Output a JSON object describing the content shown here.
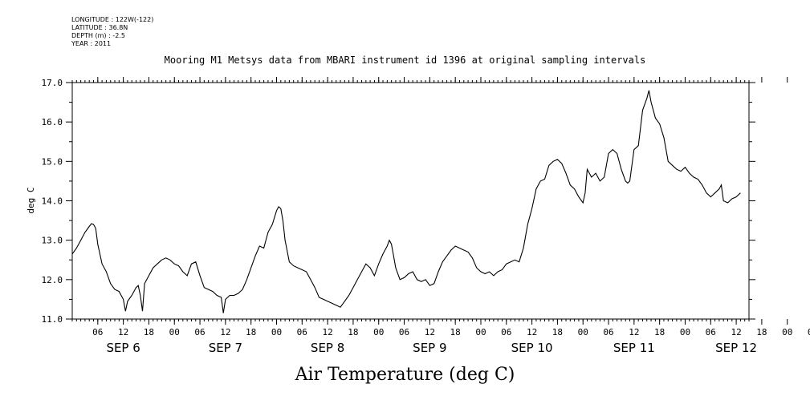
{
  "meta_lines": [
    "LONGITUDE : 122W(-122)",
    "LATITUDE : 36.8N",
    "DEPTH (m) : -2.5",
    "YEAR : 2011"
  ],
  "chart_data": {
    "type": "line",
    "title": "Mooring M1 Metsys data from MBARI instrument id 1396 at original sampling intervals",
    "xlabel": "Air Temperature (deg C)",
    "ylabel": "deg C",
    "ylim": [
      11.0,
      17.0
    ],
    "yticks": [
      "11.0",
      "12.0",
      "13.0",
      "14.0",
      "15.0",
      "16.0",
      "17.0"
    ],
    "xlim_hours": [
      0,
      159
    ],
    "hour_tick_labels": [
      "06",
      "12",
      "18",
      "00",
      "06",
      "12",
      "18",
      "00",
      "06",
      "12",
      "18",
      "00",
      "06",
      "12",
      "18",
      "00",
      "06",
      "12",
      "18",
      "00",
      "06",
      "12",
      "18",
      "00",
      "06",
      "12",
      "18",
      "00",
      "06",
      "12"
    ],
    "day_labels": [
      "SEP  6",
      "SEP  7",
      "SEP  8",
      "SEP  9",
      "SEP 10",
      "SEP 11",
      "SEP 12"
    ],
    "series": [
      {
        "name": "",
        "points": [
          [
            0,
            12.65
          ],
          [
            1,
            12.8
          ],
          [
            2,
            13.0
          ],
          [
            3,
            13.2
          ],
          [
            4,
            13.35
          ],
          [
            4.5,
            13.42
          ],
          [
            5,
            13.4
          ],
          [
            5.5,
            13.3
          ],
          [
            6,
            12.9
          ],
          [
            7,
            12.4
          ],
          [
            8,
            12.2
          ],
          [
            9,
            11.9
          ],
          [
            10,
            11.75
          ],
          [
            11,
            11.7
          ],
          [
            12,
            11.5
          ],
          [
            12.5,
            11.2
          ],
          [
            13,
            11.45
          ],
          [
            14,
            11.6
          ],
          [
            15,
            11.8
          ],
          [
            15.5,
            11.85
          ],
          [
            16,
            11.6
          ],
          [
            16.5,
            11.2
          ],
          [
            17,
            11.9
          ],
          [
            18,
            12.1
          ],
          [
            19,
            12.3
          ],
          [
            20,
            12.4
          ],
          [
            21,
            12.5
          ],
          [
            22,
            12.55
          ],
          [
            23,
            12.5
          ],
          [
            24,
            12.4
          ],
          [
            25,
            12.35
          ],
          [
            26,
            12.2
          ],
          [
            27,
            12.1
          ],
          [
            28,
            12.4
          ],
          [
            29,
            12.45
          ],
          [
            30,
            12.1
          ],
          [
            31,
            11.8
          ],
          [
            32,
            11.75
          ],
          [
            33,
            11.7
          ],
          [
            34,
            11.6
          ],
          [
            35,
            11.55
          ],
          [
            35.5,
            11.15
          ],
          [
            36,
            11.5
          ],
          [
            37,
            11.6
          ],
          [
            38,
            11.6
          ],
          [
            39,
            11.65
          ],
          [
            40,
            11.75
          ],
          [
            41,
            12.0
          ],
          [
            42,
            12.3
          ],
          [
            43,
            12.6
          ],
          [
            44,
            12.85
          ],
          [
            45,
            12.8
          ],
          [
            46,
            13.2
          ],
          [
            47,
            13.4
          ],
          [
            48,
            13.75
          ],
          [
            48.5,
            13.85
          ],
          [
            49,
            13.8
          ],
          [
            49.5,
            13.5
          ],
          [
            50,
            13.0
          ],
          [
            51,
            12.45
          ],
          [
            52,
            12.35
          ],
          [
            53,
            12.3
          ],
          [
            54,
            12.25
          ],
          [
            55,
            12.2
          ],
          [
            56,
            12.0
          ],
          [
            57,
            11.8
          ],
          [
            58,
            11.55
          ],
          [
            59,
            11.5
          ],
          [
            60,
            11.45
          ],
          [
            61,
            11.4
          ],
          [
            62,
            11.35
          ],
          [
            63,
            11.3
          ],
          [
            64,
            11.45
          ],
          [
            65,
            11.6
          ],
          [
            66,
            11.8
          ],
          [
            67,
            12.0
          ],
          [
            68,
            12.2
          ],
          [
            69,
            12.4
          ],
          [
            70,
            12.3
          ],
          [
            71,
            12.1
          ],
          [
            72,
            12.4
          ],
          [
            73,
            12.65
          ],
          [
            74,
            12.85
          ],
          [
            74.5,
            13.0
          ],
          [
            75,
            12.9
          ],
          [
            75.5,
            12.6
          ],
          [
            76,
            12.3
          ],
          [
            77,
            12.0
          ],
          [
            78,
            12.05
          ],
          [
            79,
            12.15
          ],
          [
            80,
            12.2
          ],
          [
            81,
            12.0
          ],
          [
            82,
            11.95
          ],
          [
            83,
            12.0
          ],
          [
            84,
            11.85
          ],
          [
            85,
            11.9
          ],
          [
            86,
            12.2
          ],
          [
            87,
            12.45
          ],
          [
            88,
            12.6
          ],
          [
            89,
            12.75
          ],
          [
            90,
            12.85
          ],
          [
            91,
            12.8
          ],
          [
            92,
            12.75
          ],
          [
            93,
            12.7
          ],
          [
            94,
            12.55
          ],
          [
            95,
            12.3
          ],
          [
            96,
            12.2
          ],
          [
            97,
            12.15
          ],
          [
            98,
            12.2
          ],
          [
            99,
            12.1
          ],
          [
            100,
            12.2
          ],
          [
            101,
            12.25
          ],
          [
            102,
            12.4
          ],
          [
            103,
            12.45
          ],
          [
            104,
            12.5
          ],
          [
            105,
            12.45
          ],
          [
            106,
            12.8
          ],
          [
            107,
            13.4
          ],
          [
            108,
            13.8
          ],
          [
            109,
            14.3
          ],
          [
            110,
            14.5
          ],
          [
            111,
            14.55
          ],
          [
            112,
            14.9
          ],
          [
            113,
            15.0
          ],
          [
            114,
            15.05
          ],
          [
            115,
            14.95
          ],
          [
            116,
            14.7
          ],
          [
            117,
            14.4
          ],
          [
            118,
            14.3
          ],
          [
            119,
            14.1
          ],
          [
            120,
            13.95
          ],
          [
            120.5,
            14.2
          ],
          [
            121,
            14.8
          ],
          [
            122,
            14.6
          ],
          [
            123,
            14.7
          ],
          [
            124,
            14.5
          ],
          [
            125,
            14.6
          ],
          [
            126,
            15.2
          ],
          [
            127,
            15.3
          ],
          [
            128,
            15.2
          ],
          [
            129,
            14.8
          ],
          [
            130,
            14.5
          ],
          [
            130.5,
            14.45
          ],
          [
            131,
            14.5
          ],
          [
            132,
            15.3
          ],
          [
            133,
            15.4
          ],
          [
            134,
            16.3
          ],
          [
            135,
            16.6
          ],
          [
            135.5,
            16.8
          ],
          [
            136,
            16.5
          ],
          [
            137,
            16.1
          ],
          [
            138,
            15.95
          ],
          [
            139,
            15.6
          ],
          [
            140,
            15.0
          ],
          [
            141,
            14.9
          ],
          [
            142,
            14.8
          ],
          [
            143,
            14.75
          ],
          [
            144,
            14.85
          ],
          [
            145,
            14.7
          ],
          [
            146,
            14.6
          ],
          [
            147,
            14.55
          ],
          [
            148,
            14.4
          ],
          [
            149,
            14.2
          ],
          [
            150,
            14.1
          ],
          [
            151,
            14.2
          ],
          [
            152,
            14.3
          ],
          [
            152.5,
            14.4
          ],
          [
            153,
            14.0
          ],
          [
            154,
            13.95
          ],
          [
            155,
            14.05
          ],
          [
            156,
            14.1
          ],
          [
            157,
            14.2
          ]
        ]
      }
    ]
  }
}
